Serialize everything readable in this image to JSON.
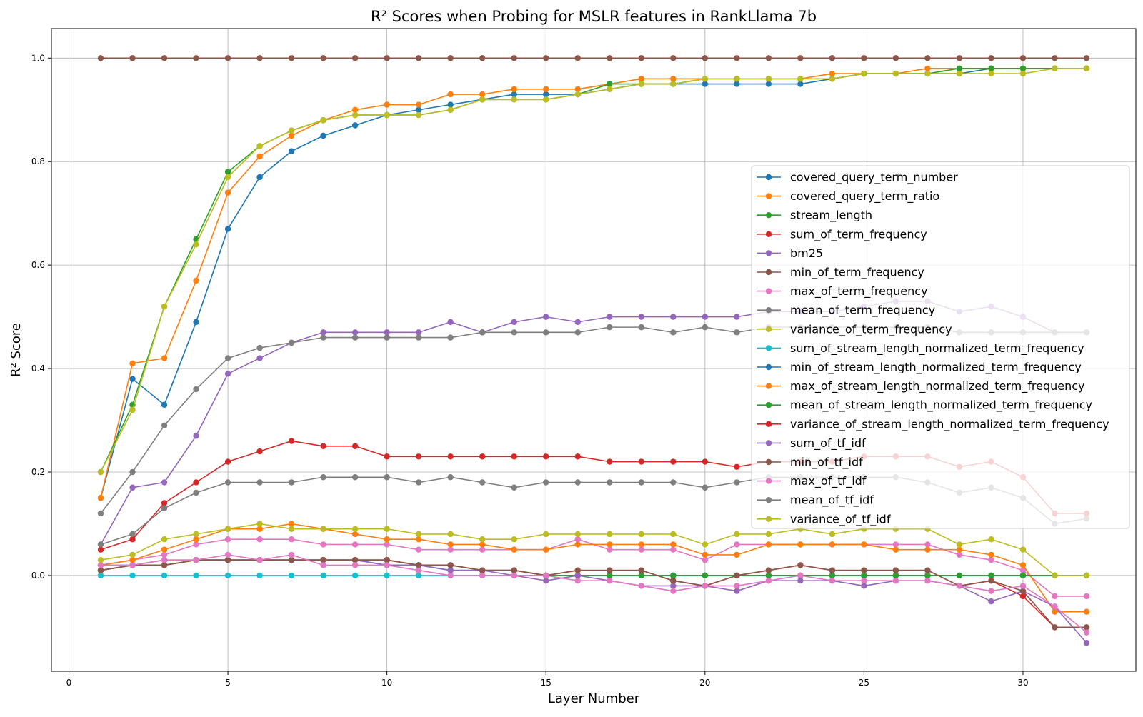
{
  "chart_data": {
    "type": "line",
    "title": "R² Scores when Probing for MSLR features in RankLlama 7b",
    "xlabel": "Layer Number",
    "ylabel": "R² Score",
    "xlim": [
      -0.55,
      33.55
    ],
    "ylim": [
      -0.185,
      1.057
    ],
    "xticks": [
      0,
      5,
      10,
      15,
      20,
      25,
      30
    ],
    "xtick_labels": [
      "0",
      "5",
      "10",
      "15",
      "20",
      "25",
      "30"
    ],
    "yticks": [
      0.0,
      0.2,
      0.4,
      0.6,
      0.8,
      1.0
    ],
    "ytick_labels": [
      "0.0",
      "0.2",
      "0.4",
      "0.6",
      "0.8",
      "1.0"
    ],
    "grid": true,
    "legend_position": "center-right",
    "x": [
      1,
      2,
      3,
      4,
      5,
      6,
      7,
      8,
      9,
      10,
      11,
      12,
      13,
      14,
      15,
      16,
      17,
      18,
      19,
      20,
      21,
      22,
      23,
      24,
      25,
      26,
      27,
      28,
      29,
      30,
      31,
      32
    ],
    "series": [
      {
        "name": "covered_query_term_number",
        "color": "#1f77b4",
        "values": [
          0.15,
          0.38,
          0.33,
          0.49,
          0.67,
          0.77,
          0.82,
          0.85,
          0.87,
          0.89,
          0.9,
          0.91,
          0.92,
          0.93,
          0.93,
          0.93,
          0.94,
          0.95,
          0.95,
          0.95,
          0.95,
          0.95,
          0.95,
          0.96,
          0.97,
          0.97,
          0.97,
          0.97,
          0.98,
          0.98,
          0.98,
          0.98
        ]
      },
      {
        "name": "covered_query_term_ratio",
        "color": "#ff7f0e",
        "values": [
          0.15,
          0.41,
          0.42,
          0.57,
          0.74,
          0.81,
          0.85,
          0.88,
          0.9,
          0.91,
          0.91,
          0.93,
          0.93,
          0.94,
          0.94,
          0.94,
          0.95,
          0.96,
          0.96,
          0.96,
          0.96,
          0.96,
          0.96,
          0.97,
          0.97,
          0.97,
          0.98,
          0.98,
          0.98,
          0.98,
          0.98,
          0.98
        ]
      },
      {
        "name": "stream_length",
        "color": "#2ca02c",
        "values": [
          0.2,
          0.33,
          0.52,
          0.65,
          0.78,
          0.83,
          0.86,
          0.88,
          0.89,
          0.89,
          0.89,
          0.9,
          0.92,
          0.92,
          0.92,
          0.93,
          0.95,
          0.95,
          0.95,
          0.96,
          0.96,
          0.96,
          0.96,
          0.96,
          0.97,
          0.97,
          0.97,
          0.98,
          0.98,
          0.98,
          0.98,
          0.98
        ]
      },
      {
        "name": "sum_of_term_frequency",
        "color": "#d62728",
        "values": [
          0.05,
          0.07,
          0.14,
          0.18,
          0.22,
          0.24,
          0.26,
          0.25,
          0.25,
          0.23,
          0.23,
          0.23,
          0.23,
          0.23,
          0.23,
          0.23,
          0.22,
          0.22,
          0.22,
          0.22,
          0.21,
          0.22,
          0.22,
          0.22,
          0.23,
          0.23,
          0.23,
          0.21,
          0.22,
          0.19,
          0.12,
          0.12
        ]
      },
      {
        "name": "bm25",
        "color": "#9467bd",
        "values": [
          0.06,
          0.17,
          0.18,
          0.27,
          0.39,
          0.42,
          0.45,
          0.47,
          0.47,
          0.47,
          0.47,
          0.49,
          0.47,
          0.49,
          0.5,
          0.49,
          0.5,
          0.5,
          0.5,
          0.5,
          0.5,
          0.51,
          0.51,
          0.51,
          0.52,
          0.53,
          0.53,
          0.51,
          0.52,
          0.5,
          0.47,
          0.47
        ]
      },
      {
        "name": "min_of_term_frequency",
        "color": "#8c564b",
        "values": [
          1.0,
          1.0,
          1.0,
          1.0,
          1.0,
          1.0,
          1.0,
          1.0,
          1.0,
          1.0,
          1.0,
          1.0,
          1.0,
          1.0,
          1.0,
          1.0,
          1.0,
          1.0,
          1.0,
          1.0,
          1.0,
          1.0,
          1.0,
          1.0,
          1.0,
          1.0,
          1.0,
          1.0,
          1.0,
          1.0,
          1.0,
          1.0
        ]
      },
      {
        "name": "max_of_term_frequency",
        "color": "#e377c2",
        "values": [
          0.02,
          0.03,
          0.04,
          0.06,
          0.07,
          0.07,
          0.07,
          0.06,
          0.06,
          0.06,
          0.05,
          0.05,
          0.05,
          0.05,
          0.05,
          0.07,
          0.05,
          0.05,
          0.05,
          0.03,
          0.06,
          0.06,
          0.06,
          0.06,
          0.06,
          0.06,
          0.06,
          0.04,
          0.03,
          0.01,
          -0.04,
          -0.04
        ]
      },
      {
        "name": "mean_of_term_frequency",
        "color": "#7f7f7f",
        "values": [
          0.12,
          0.2,
          0.29,
          0.36,
          0.42,
          0.44,
          0.45,
          0.46,
          0.46,
          0.46,
          0.46,
          0.46,
          0.47,
          0.47,
          0.47,
          0.47,
          0.48,
          0.48,
          0.47,
          0.48,
          0.47,
          0.48,
          0.48,
          0.48,
          0.48,
          0.48,
          0.48,
          0.47,
          0.47,
          0.47,
          0.47,
          0.47
        ]
      },
      {
        "name": "variance_of_term_frequency",
        "color": "#bcbd22",
        "values": [
          0.2,
          0.32,
          0.52,
          0.64,
          0.77,
          0.83,
          0.86,
          0.88,
          0.89,
          0.89,
          0.89,
          0.9,
          0.92,
          0.92,
          0.92,
          0.93,
          0.94,
          0.95,
          0.95,
          0.96,
          0.96,
          0.96,
          0.96,
          0.96,
          0.97,
          0.97,
          0.97,
          0.97,
          0.97,
          0.97,
          0.98,
          0.98
        ]
      },
      {
        "name": "sum_of_stream_length_normalized_term_frequency",
        "color": "#17becf",
        "values": [
          0.0,
          0.0,
          0.0,
          0.0,
          0.0,
          0.0,
          0.0,
          0.0,
          0.0,
          0.0,
          0.0,
          0.0,
          0.0,
          0.0,
          0.0,
          0.0,
          0.0,
          0.0,
          0.0,
          0.0,
          0.0,
          0.0,
          0.0,
          0.0,
          0.0,
          0.0,
          0.0,
          0.0,
          0.0,
          0.0,
          0.0,
          0.0
        ]
      },
      {
        "name": "min_of_stream_length_normalized_term_frequency",
        "color": "#1f77b4",
        "values": [
          0.01,
          0.02,
          0.02,
          0.03,
          0.03,
          0.03,
          0.03,
          0.03,
          0.03,
          0.02,
          0.02,
          0.01,
          0.01,
          0.01,
          0.0,
          0.0,
          0.0,
          0.0,
          0.0,
          0.0,
          0.0,
          0.0,
          0.0,
          0.0,
          0.0,
          0.0,
          0.0,
          0.0,
          0.0,
          0.0,
          0.0,
          0.0
        ]
      },
      {
        "name": "max_of_stream_length_normalized_term_frequency",
        "color": "#ff7f0e",
        "values": [
          0.02,
          0.03,
          0.05,
          0.07,
          0.09,
          0.09,
          0.1,
          0.09,
          0.08,
          0.07,
          0.07,
          0.06,
          0.06,
          0.05,
          0.05,
          0.06,
          0.06,
          0.06,
          0.06,
          0.04,
          0.04,
          0.06,
          0.06,
          0.06,
          0.06,
          0.05,
          0.05,
          0.05,
          0.04,
          0.02,
          -0.07,
          -0.07
        ]
      },
      {
        "name": "mean_of_stream_length_normalized_term_frequency",
        "color": "#2ca02c",
        "values": [
          0.01,
          0.02,
          0.02,
          0.03,
          0.03,
          0.03,
          0.03,
          0.03,
          0.03,
          0.03,
          0.02,
          0.02,
          0.01,
          0.01,
          0.0,
          0.0,
          0.0,
          0.0,
          0.0,
          0.0,
          0.0,
          0.0,
          0.0,
          0.0,
          0.0,
          0.0,
          0.0,
          0.0,
          0.0,
          0.0,
          0.0,
          0.0
        ]
      },
      {
        "name": "variance_of_stream_length_normalized_term_frequency",
        "color": "#d62728",
        "values": [
          0.01,
          0.02,
          0.02,
          0.03,
          0.03,
          0.03,
          0.03,
          0.03,
          0.03,
          0.03,
          0.02,
          0.02,
          0.01,
          0.01,
          0.0,
          0.01,
          0.01,
          0.01,
          -0.01,
          -0.02,
          0.0,
          0.01,
          0.02,
          0.01,
          0.01,
          0.01,
          0.01,
          -0.02,
          -0.01,
          -0.04,
          -0.1,
          -0.1
        ]
      },
      {
        "name": "sum_of_tf_idf",
        "color": "#9467bd",
        "values": [
          0.02,
          0.02,
          0.03,
          0.03,
          0.03,
          0.03,
          0.03,
          0.03,
          0.03,
          0.02,
          0.02,
          0.01,
          0.01,
          0.0,
          -0.01,
          0.0,
          -0.01,
          -0.02,
          -0.02,
          -0.02,
          -0.03,
          -0.01,
          -0.01,
          -0.01,
          -0.02,
          -0.01,
          -0.01,
          -0.02,
          -0.05,
          -0.03,
          -0.06,
          -0.13
        ]
      },
      {
        "name": "min_of_tf_idf",
        "color": "#8c564b",
        "values": [
          0.01,
          0.02,
          0.02,
          0.03,
          0.03,
          0.03,
          0.03,
          0.03,
          0.03,
          0.03,
          0.02,
          0.02,
          0.01,
          0.01,
          0.0,
          0.01,
          0.01,
          0.01,
          -0.01,
          -0.02,
          0.0,
          0.01,
          0.02,
          0.01,
          0.01,
          0.01,
          0.01,
          -0.02,
          -0.01,
          -0.03,
          -0.1,
          -0.1
        ]
      },
      {
        "name": "max_of_tf_idf",
        "color": "#e377c2",
        "values": [
          0.02,
          0.02,
          0.03,
          0.03,
          0.04,
          0.03,
          0.04,
          0.02,
          0.02,
          0.02,
          0.01,
          0.0,
          0.0,
          0.0,
          0.0,
          -0.01,
          -0.01,
          -0.02,
          -0.03,
          -0.02,
          -0.02,
          -0.01,
          0.0,
          -0.01,
          -0.01,
          -0.01,
          -0.01,
          -0.02,
          -0.03,
          -0.02,
          -0.06,
          -0.11
        ]
      },
      {
        "name": "mean_of_tf_idf",
        "color": "#7f7f7f",
        "values": [
          0.06,
          0.08,
          0.13,
          0.16,
          0.18,
          0.18,
          0.18,
          0.19,
          0.19,
          0.19,
          0.18,
          0.19,
          0.18,
          0.17,
          0.18,
          0.18,
          0.18,
          0.18,
          0.18,
          0.17,
          0.18,
          0.19,
          0.19,
          0.19,
          0.19,
          0.19,
          0.18,
          0.16,
          0.17,
          0.15,
          0.1,
          0.11
        ]
      },
      {
        "name": "variance_of_tf_idf",
        "color": "#bcbd22",
        "values": [
          0.03,
          0.04,
          0.07,
          0.08,
          0.09,
          0.1,
          0.09,
          0.09,
          0.09,
          0.09,
          0.08,
          0.08,
          0.07,
          0.07,
          0.08,
          0.08,
          0.08,
          0.08,
          0.08,
          0.06,
          0.08,
          0.08,
          0.09,
          0.08,
          0.09,
          0.09,
          0.09,
          0.06,
          0.07,
          0.05,
          0.0,
          0.0
        ]
      }
    ]
  }
}
